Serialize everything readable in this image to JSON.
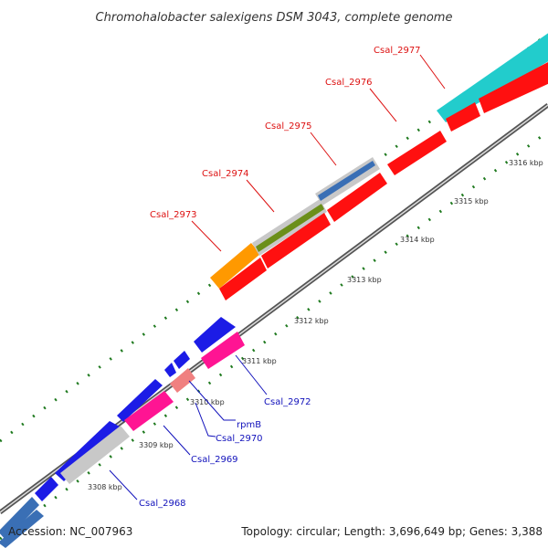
{
  "title": "Chromohalobacter salexigens DSM 3043, complete genome",
  "footer": {
    "accession": "Accession: NC_007963",
    "summary": "Topology: circular; Length: 3,696,649 bp; Genes: 3,388"
  },
  "colors": {
    "top_label": "#dd1111",
    "bottom_label": "#1111bb",
    "backbone": "#888888",
    "tick": "#1f7a1f"
  },
  "ticks": [
    {
      "label": "3308 kbp"
    },
    {
      "label": "3309 kbp"
    },
    {
      "label": "3310 kbp"
    },
    {
      "label": "3311 kbp"
    },
    {
      "label": "3312 kbp"
    },
    {
      "label": "3313 kbp"
    },
    {
      "label": "3314 kbp"
    },
    {
      "label": "3315 kbp"
    },
    {
      "label": "3316 kbp"
    }
  ],
  "top_gene_labels": [
    {
      "label": "Csal_2973"
    },
    {
      "label": "Csal_2974"
    },
    {
      "label": "Csal_2975"
    },
    {
      "label": "Csal_2976"
    },
    {
      "label": "Csal_2977"
    }
  ],
  "bottom_gene_labels": [
    {
      "label": "Csal_2972"
    },
    {
      "label": "rpmB"
    },
    {
      "label": "Csal_2970"
    },
    {
      "label": "Csal_2969"
    },
    {
      "label": "Csal_2968"
    }
  ]
}
